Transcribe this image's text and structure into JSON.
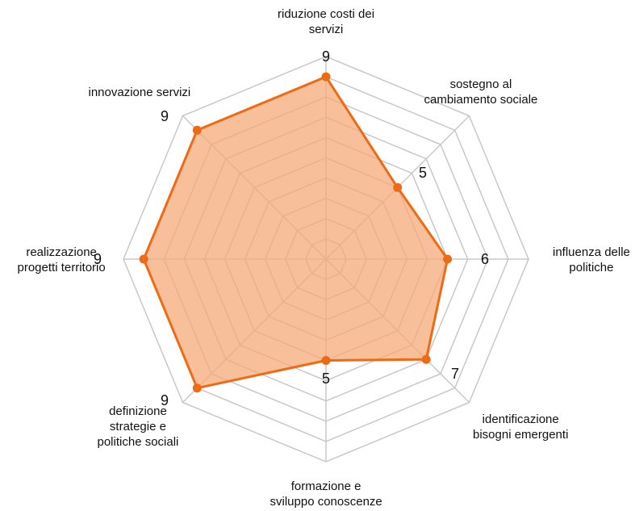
{
  "chart_data": {
    "type": "radar",
    "categories": [
      "riduzione costi dei\nservizi",
      "sostegno al\ncambiamento sociale",
      "influenza delle\npolitiche",
      "identificazione\nbisogni emergenti",
      "formazione e\nsviluppo conoscenze",
      "definizione\nstrategie e\npolitiche sociali",
      "realizzazione\nprogetti territorio",
      "innovazione servizi"
    ],
    "values": [
      9,
      5,
      6,
      7,
      5,
      9,
      9,
      9
    ],
    "value_labels": [
      "9",
      "5",
      "6",
      "7",
      "5",
      "9",
      "9",
      "9"
    ],
    "rmax": 10,
    "grid_levels": 10,
    "grid": true,
    "legend": "none",
    "colors": {
      "line": "#ee6a14",
      "fill": "#f5ab78",
      "grid": "#c8c8c8"
    }
  }
}
